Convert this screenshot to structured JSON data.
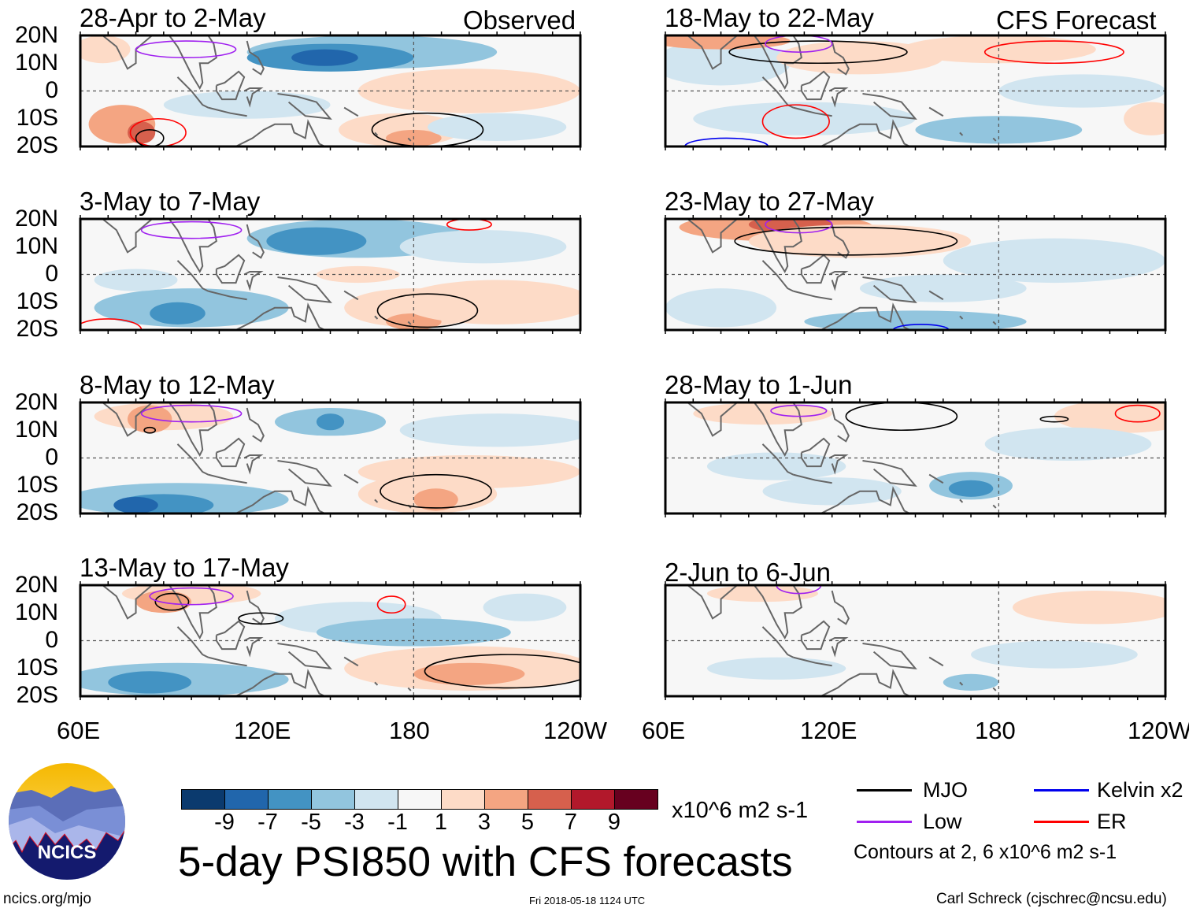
{
  "left_header": "Observed",
  "right_header": "CFS Forecast",
  "panels_left": [
    "28-Apr to 2-May",
    "3-May to 7-May",
    "8-May to 12-May",
    "13-May to 17-May"
  ],
  "panels_right": [
    "18-May to 22-May",
    "23-May to 27-May",
    "28-May to 1-Jun",
    "2-Jun to 6-Jun"
  ],
  "lat_labels": [
    "20N",
    "10N",
    "0",
    "10S",
    "20S"
  ],
  "lon_labels": [
    "60E",
    "120E",
    "180",
    "120W"
  ],
  "colorbar": {
    "colors": [
      "#0b3a6e",
      "#2166ac",
      "#4393c3",
      "#92c5de",
      "#d1e5f0",
      "#f7f7f7",
      "#fddbc7",
      "#f4a582",
      "#d6604d",
      "#b2182b",
      "#67001f"
    ],
    "ticks": [
      "-9",
      "-7",
      "-5",
      "-3",
      "-1",
      "1",
      "3",
      "5",
      "7",
      "9"
    ],
    "units": "x10^6 m2 s-1"
  },
  "title": "5-day PSI850 with CFS forecasts",
  "legend": {
    "items": [
      {
        "label": "MJO",
        "color": "#000000"
      },
      {
        "label": "Kelvin x2",
        "color": "#0000ee"
      },
      {
        "label": "Low",
        "color": "#a020f0"
      },
      {
        "label": "ER",
        "color": "#ff0000"
      }
    ],
    "note": "Contours at 2, 6 x10^6 m2 s-1"
  },
  "logo": "NCICS",
  "footer": {
    "url": "ncics.org/mjo",
    "timestamp": "Fri 2018-05-18 1124 UTC",
    "author": "Carl Schreck (cjschrec@ncsu.edu)"
  }
}
